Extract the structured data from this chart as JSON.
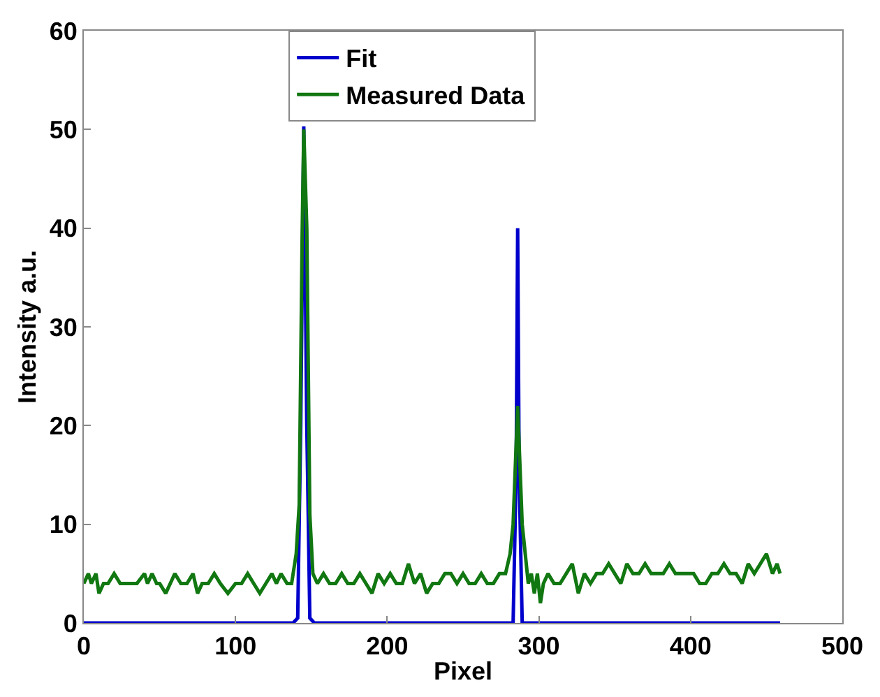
{
  "chart_data": {
    "type": "line",
    "xlabel": "Pixel",
    "ylabel": "Intensity a.u.",
    "xlim": [
      0,
      500
    ],
    "ylim": [
      0,
      60
    ],
    "xticks": [
      0,
      100,
      200,
      300,
      400,
      500
    ],
    "yticks": [
      0,
      10,
      20,
      30,
      40,
      50,
      60
    ],
    "legend": "top",
    "line_style": "solid",
    "marker": "none",
    "series": [
      {
        "name": "Fit",
        "color": "#0000cc",
        "x": [
          0,
          138,
          141,
          143,
          145,
          147,
          149,
          152,
          280,
          283,
          285,
          286,
          287,
          289,
          292,
          459
        ],
        "values": [
          0,
          0,
          0.5,
          20,
          50.3,
          20,
          0.5,
          0,
          0,
          0,
          15,
          40,
          15,
          0,
          0,
          0
        ]
      },
      {
        "name": "Measured Data",
        "color": "#117711",
        "x": [
          0,
          3,
          5,
          8,
          10,
          13,
          16,
          20,
          24,
          27,
          30,
          35,
          40,
          42,
          45,
          48,
          50,
          54,
          57,
          60,
          64,
          68,
          72,
          75,
          78,
          82,
          86,
          90,
          95,
          100,
          104,
          108,
          112,
          116,
          120,
          124,
          127,
          130,
          134,
          137,
          140,
          142,
          144,
          145,
          147,
          149,
          151,
          154,
          158,
          162,
          166,
          170,
          174,
          178,
          182,
          186,
          190,
          194,
          198,
          202,
          206,
          210,
          214,
          218,
          222,
          226,
          230,
          234,
          238,
          242,
          246,
          250,
          254,
          258,
          262,
          266,
          270,
          274,
          278,
          281,
          283,
          285,
          286,
          287,
          289,
          291,
          293,
          295,
          297,
          299,
          301,
          303,
          306,
          310,
          314,
          318,
          322,
          326,
          330,
          334,
          338,
          342,
          346,
          350,
          354,
          358,
          362,
          366,
          370,
          374,
          378,
          382,
          386,
          390,
          394,
          398,
          402,
          406,
          410,
          414,
          418,
          422,
          426,
          430,
          434,
          438,
          442,
          446,
          450,
          454,
          457,
          459
        ],
        "values": [
          4,
          5,
          4,
          5,
          3,
          4,
          4,
          5,
          4,
          4,
          4,
          4,
          5,
          4,
          5,
          4,
          4,
          3,
          4,
          5,
          4,
          4,
          5,
          3,
          4,
          4,
          5,
          4,
          3,
          4,
          4,
          5,
          4,
          3,
          4,
          5,
          4,
          5,
          4,
          4,
          7,
          12,
          40,
          50,
          40,
          11,
          5,
          4,
          5,
          4,
          4,
          5,
          4,
          4,
          5,
          4,
          3,
          5,
          4,
          5,
          4,
          4,
          6,
          4,
          5,
          3,
          4,
          4,
          5,
          5,
          4,
          5,
          4,
          4,
          5,
          4,
          4,
          5,
          5,
          7,
          10,
          18,
          22,
          18,
          10,
          7,
          4,
          5,
          3,
          5,
          2,
          4,
          5,
          4,
          4,
          5,
          6,
          3,
          5,
          4,
          5,
          5,
          6,
          5,
          4,
          6,
          5,
          5,
          6,
          5,
          5,
          5,
          6,
          5,
          5,
          5,
          5,
          4,
          4,
          5,
          5,
          6,
          5,
          5,
          4,
          6,
          5,
          6,
          7,
          5,
          6,
          5
        ]
      }
    ]
  }
}
